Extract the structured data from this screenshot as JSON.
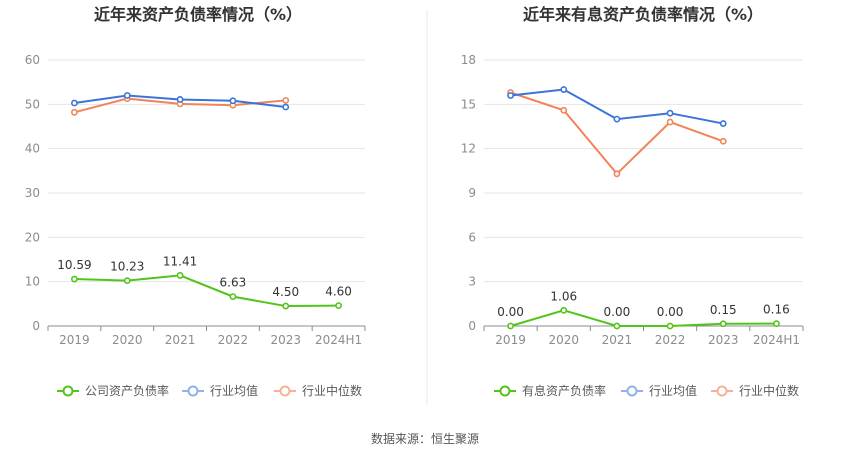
{
  "charts": [
    {
      "title": "近年来资产负债率情况（%）",
      "legend": [
        {
          "label": "公司资产负债率",
          "color": "#52c41a"
        },
        {
          "label": "行业均值",
          "color": "#8fb2ea"
        },
        {
          "label": "行业中位数",
          "color": "#f5b29a"
        }
      ]
    },
    {
      "title": "近年来有息资产负债率情况（%）",
      "legend": [
        {
          "label": "有息资产负债率",
          "color": "#52c41a"
        },
        {
          "label": "行业均值",
          "color": "#8fb2ea"
        },
        {
          "label": "行业中位数",
          "color": "#f5b29a"
        }
      ]
    }
  ],
  "source": "数据来源：恒生聚源",
  "chart_data": [
    {
      "type": "line",
      "title": "近年来资产负债率情况（%）",
      "categories": [
        "2019",
        "2020",
        "2021",
        "2022",
        "2023",
        "2024H1"
      ],
      "ylim": [
        0,
        60
      ],
      "yticks": [
        "0",
        "10",
        "20",
        "30",
        "40",
        "50",
        "60"
      ],
      "grid": true,
      "legend_position": "bottom",
      "series": [
        {
          "name": "公司资产负债率",
          "color": "#52c41a",
          "values": [
            10.59,
            10.23,
            11.41,
            6.63,
            4.5,
            4.6
          ],
          "labels": [
            "10.59",
            "10.23",
            "11.41",
            "6.63",
            "4.50",
            "4.60"
          ]
        },
        {
          "name": "行业均值",
          "color": "#3a74d8",
          "values": [
            50.3,
            52.0,
            51.1,
            50.8,
            49.4,
            null
          ]
        },
        {
          "name": "行业中位数",
          "color": "#f0845a",
          "values": [
            48.2,
            51.3,
            50.1,
            49.8,
            50.9,
            null
          ]
        }
      ]
    },
    {
      "type": "line",
      "title": "近年来有息资产负债率情况（%）",
      "categories": [
        "2019",
        "2020",
        "2021",
        "2022",
        "2023",
        "2024H1"
      ],
      "ylim": [
        0,
        18
      ],
      "yticks": [
        "0",
        "3",
        "6",
        "9",
        "12",
        "15",
        "18"
      ],
      "grid": true,
      "legend_position": "bottom",
      "series": [
        {
          "name": "有息资产负债率",
          "color": "#52c41a",
          "values": [
            0.0,
            1.06,
            0.0,
            0.0,
            0.15,
            0.16
          ],
          "labels": [
            "0.00",
            "1.06",
            "0.00",
            "0.00",
            "0.15",
            "0.16"
          ]
        },
        {
          "name": "行业均值",
          "color": "#3a74d8",
          "values": [
            15.6,
            16.0,
            14.0,
            14.4,
            13.7,
            null
          ]
        },
        {
          "name": "行业中位数",
          "color": "#f0845a",
          "values": [
            15.8,
            14.6,
            10.3,
            13.8,
            12.5,
            null
          ]
        }
      ]
    }
  ]
}
